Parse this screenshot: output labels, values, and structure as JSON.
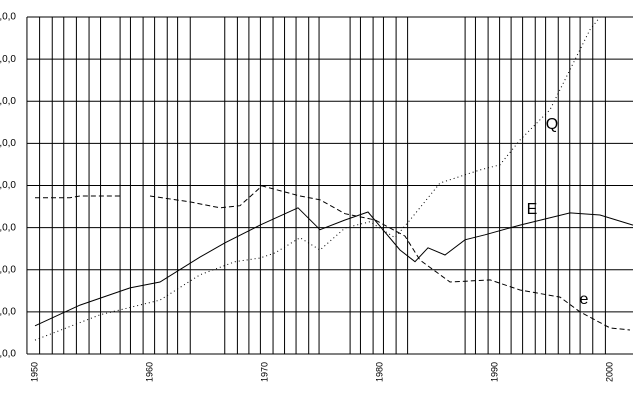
{
  "chart_data": {
    "type": "line",
    "xlim": [
      1950,
      2002
    ],
    "ylim": [
      0,
      8
    ],
    "xticks": [
      1950,
      1960,
      1970,
      1980,
      1990,
      2000
    ],
    "yticks": [
      {
        "value": 0,
        "label": ",0,0"
      },
      {
        "value": 1,
        "label": ",0,0"
      },
      {
        "value": 2,
        "label": ",0,0"
      },
      {
        "value": 3,
        "label": ",0,0"
      },
      {
        "value": 4,
        "label": ",0,0"
      },
      {
        "value": 5,
        "label": ",0,0"
      },
      {
        "value": 6,
        "label": ",0,0"
      },
      {
        "value": 7,
        "label": ",0,0"
      },
      {
        "value": 8,
        "label": ",0,0"
      }
    ],
    "xgrid": [
      1949.3,
      1950.4,
      1951.5,
      1952.5,
      1953.6,
      1954.7,
      1955.7,
      1957.4,
      1958.3,
      1959.4,
      1960.4,
      1961.5,
      1962.4,
      1963.5,
      1966.5,
      1967.6,
      1968.6,
      1969.6,
      1970.7,
      1971.7,
      1972.7,
      1973.8,
      1974.7,
      1977.4,
      1978.3,
      1979.4,
      1980.3,
      1981.4,
      1982.4,
      1987.4,
      1988.3,
      1989.4,
      1990.4,
      1991.4,
      1992.4,
      1993.5,
      1994.4,
      1995.5,
      1996.5,
      1997.4,
      1998.5,
      1999.6
    ],
    "grid": true,
    "series": [
      {
        "name": "Q",
        "color": "#000000",
        "dash": "dotted",
        "x": [
          1950,
          1955.65,
          1960.87,
          1964.35,
          1967.39,
          1969.57,
          1970.87,
          1973.04,
          1974.78,
          1976.96,
          1979.13,
          1981.3,
          1982.61,
          1985.22,
          1988.7,
          1990.43,
          1992.17,
          1994.78,
          1996.52,
          1998.26,
          1999.13
        ],
        "values": [
          0.33,
          0.93,
          1.28,
          1.88,
          2.19,
          2.28,
          2.4,
          2.76,
          2.47,
          2.99,
          3.14,
          2.76,
          3.18,
          4.06,
          4.37,
          4.49,
          5.08,
          5.8,
          6.75,
          7.7,
          8.0
        ]
      },
      {
        "name": "E",
        "color": "#000000",
        "dash": "solid",
        "x": [
          1950,
          1953.91,
          1958.26,
          1960.87,
          1964.35,
          1966.52,
          1969.57,
          1972.87,
          1974.78,
          1976.96,
          1978.96,
          1981.74,
          1983.04,
          1984.17,
          1985.65,
          1987.39,
          1989.13,
          1992.17,
          1996.52,
          1999.13,
          2002
        ],
        "values": [
          0.67,
          1.16,
          1.57,
          1.71,
          2.3,
          2.64,
          3.06,
          3.47,
          2.95,
          3.18,
          3.37,
          2.47,
          2.19,
          2.52,
          2.35,
          2.71,
          2.83,
          3.06,
          3.35,
          3.3,
          3.06
        ]
      },
      {
        "name": "e",
        "color": "#000000",
        "dash": "dashed",
        "x": [
          1950,
          1953.04,
          1953.91,
          1957.39,
          1958.5,
          1960,
          1963.48,
          1966.09,
          1967.83,
          1969.74,
          1973.04,
          1974.78,
          1976.96,
          1979.57,
          1982.17,
          1983.48,
          1986.09,
          1989.57,
          1992.17,
          1995.65,
          1997.39,
          2000,
          2001.74
        ],
        "values": [
          3.71,
          3.71,
          3.75,
          3.75,
          null,
          3.75,
          3.61,
          3.47,
          3.52,
          3.99,
          3.75,
          3.66,
          3.33,
          3.18,
          2.8,
          2.23,
          1.71,
          1.76,
          1.52,
          1.35,
          1.0,
          0.62,
          0.57
        ]
      }
    ]
  }
}
